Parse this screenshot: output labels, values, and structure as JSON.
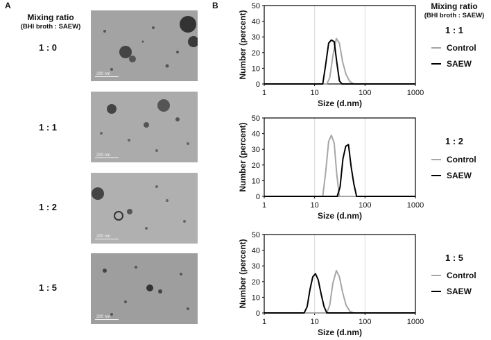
{
  "panels": {
    "a_label": "A",
    "b_label": "B"
  },
  "header": {
    "title": "Mixing ratio",
    "subtitle": "(BHI broth : SAEW)"
  },
  "micrographs": [
    {
      "ratio": "1 : 0",
      "scale": "200 nm"
    },
    {
      "ratio": "1 : 1",
      "scale": "200 nm"
    },
    {
      "ratio": "1 : 2",
      "scale": "200 nm"
    },
    {
      "ratio": "1 : 5",
      "scale": "200 nm"
    }
  ],
  "legend": {
    "control": "Control",
    "saew": "SAEW"
  },
  "colors": {
    "control": "#a6a6a6",
    "saew": "#000000",
    "grid": "#d9d9d9"
  },
  "chart_data": [
    {
      "type": "line",
      "ratio_label": "1 : 1",
      "xlabel": "Size (d.nm)",
      "ylabel": "Number (percent)",
      "x_scale": "log",
      "xlim": [
        1,
        1000
      ],
      "ylim": [
        0,
        50
      ],
      "xticks": [
        "1",
        "10",
        "100",
        "1000"
      ],
      "yticks": [
        "0",
        "10",
        "20",
        "30",
        "40",
        "50"
      ],
      "grid": "vertical",
      "series": [
        {
          "name": "Control",
          "x": [
            1,
            17.5,
            20,
            23,
            27,
            31,
            36,
            42,
            50,
            60,
            1000
          ],
          "y": [
            0,
            0,
            4,
            18,
            29,
            26,
            14,
            6,
            1.5,
            0,
            0
          ]
        },
        {
          "name": "SAEW",
          "x": [
            1,
            14.5,
            16.5,
            19,
            21.5,
            24.5,
            27.5,
            31,
            35,
            1000
          ],
          "y": [
            0,
            0,
            12,
            26,
            28,
            27,
            14,
            2,
            0,
            0
          ]
        }
      ]
    },
    {
      "type": "line",
      "ratio_label": "1 : 2",
      "xlabel": "Size (d.nm)",
      "ylabel": "Number (percent)",
      "x_scale": "log",
      "xlim": [
        1,
        1000
      ],
      "ylim": [
        0,
        50
      ],
      "xticks": [
        "1",
        "10",
        "100",
        "1000"
      ],
      "yticks": [
        "0",
        "10",
        "20",
        "30",
        "40",
        "50"
      ],
      "grid": "vertical",
      "series": [
        {
          "name": "Control",
          "x": [
            1,
            14.5,
            16.5,
            19,
            21.5,
            24.5,
            27.5,
            31,
            1000
          ],
          "y": [
            0,
            0,
            15,
            35,
            39,
            34,
            14,
            0,
            0
          ]
        },
        {
          "name": "SAEW",
          "x": [
            1,
            28,
            32,
            36.5,
            41.5,
            47,
            53,
            60,
            68,
            1000
          ],
          "y": [
            0,
            0,
            6,
            24,
            32,
            33,
            19,
            8,
            0,
            0
          ]
        }
      ]
    },
    {
      "type": "line",
      "ratio_label": "1 : 5",
      "xlabel": "Size (d.nm)",
      "ylabel": "Number (percent)",
      "x_scale": "log",
      "xlim": [
        1,
        1000
      ],
      "ylim": [
        0,
        50
      ],
      "xticks": [
        "1",
        "10",
        "100",
        "1000"
      ],
      "yticks": [
        "0",
        "10",
        "20",
        "30",
        "40",
        "50"
      ],
      "grid": "vertical",
      "series": [
        {
          "name": "Control",
          "x": [
            1,
            17.5,
            20,
            23,
            27,
            31,
            36,
            42,
            50,
            60,
            1000
          ],
          "y": [
            0,
            0,
            5,
            19,
            27,
            23,
            13,
            5,
            1,
            0,
            0
          ]
        },
        {
          "name": "SAEW",
          "x": [
            1,
            6.2,
            7.1,
            8.1,
            9.2,
            10.4,
            11.8,
            13.5,
            15.4,
            17.5,
            1000
          ],
          "y": [
            0,
            0,
            4,
            15,
            23,
            25,
            21,
            12,
            4,
            0,
            0
          ]
        }
      ]
    }
  ]
}
